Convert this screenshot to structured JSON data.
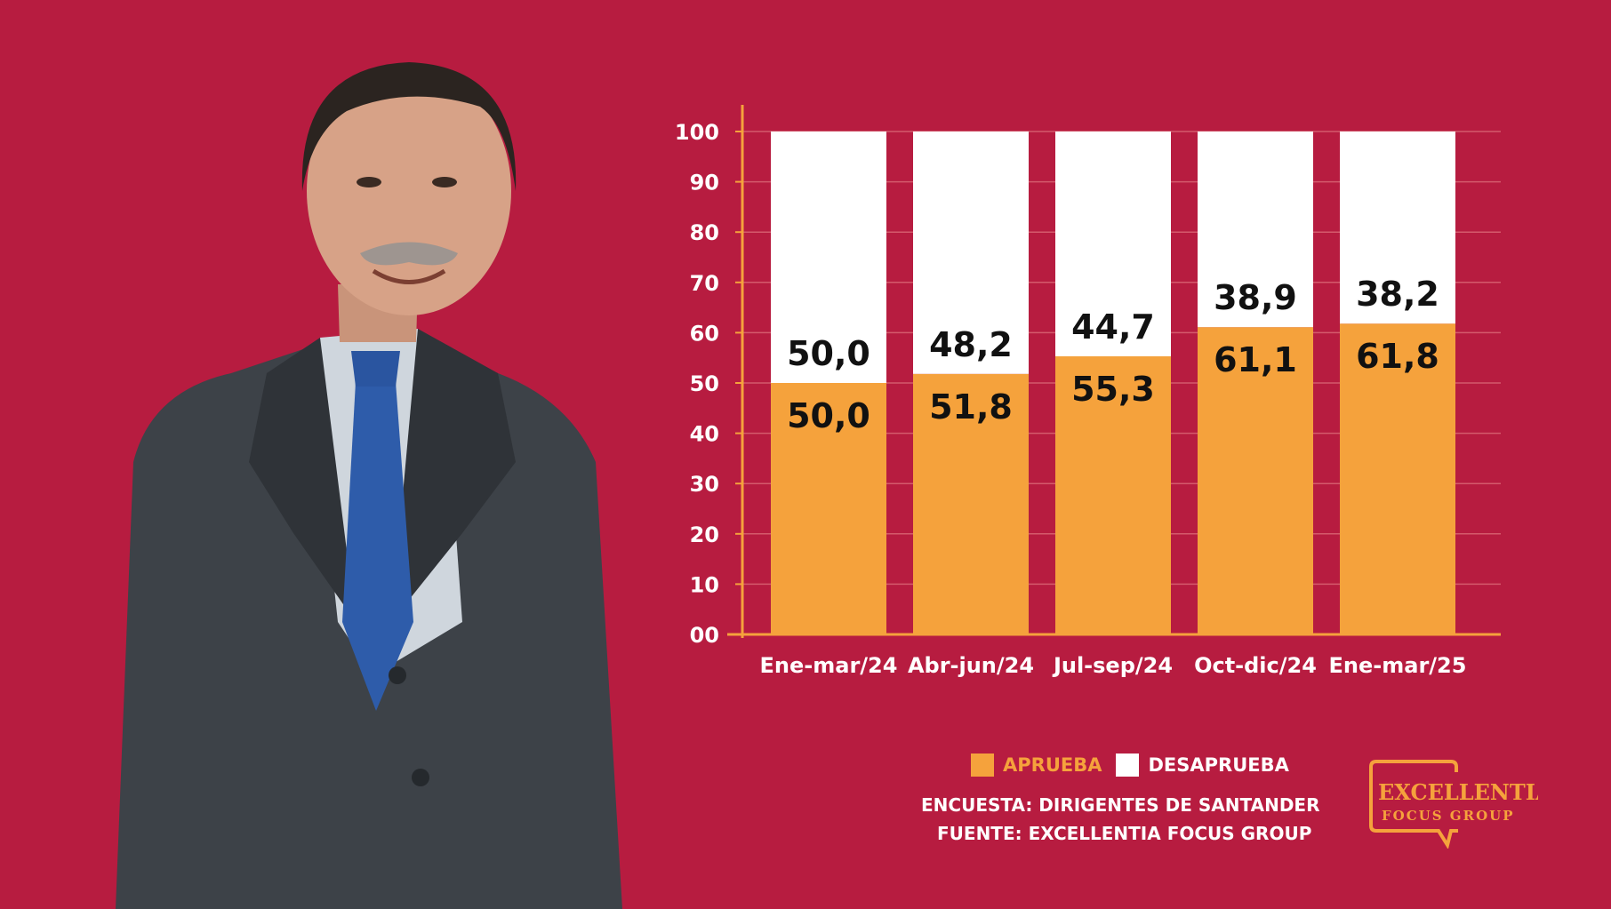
{
  "colors": {
    "background": "#b71c40",
    "aprueba": "#f5a23c",
    "desaprueba": "#ffffff",
    "axis": "#f5a23c",
    "grid": "#d45a6c"
  },
  "chart_data": {
    "type": "bar",
    "stacked": true,
    "categories": [
      "Ene-mar/24",
      "Abr-jun/24",
      "Jul-sep/24",
      "Oct-dic/24",
      "Ene-mar/25"
    ],
    "series": [
      {
        "name": "APRUEBA",
        "values": [
          50.0,
          51.8,
          55.3,
          61.1,
          61.8
        ],
        "labels": [
          "50,0",
          "51,8",
          "55,3",
          "61,1",
          "61,8"
        ]
      },
      {
        "name": "DESAPRUEBA",
        "values": [
          50.0,
          48.2,
          44.7,
          38.9,
          38.2
        ],
        "labels": [
          "50,0",
          "48,2",
          "44,7",
          "38,9",
          "38,2"
        ]
      }
    ],
    "ylim": [
      0,
      100
    ],
    "yticks": [
      "00",
      "10",
      "20",
      "30",
      "40",
      "50",
      "60",
      "70",
      "80",
      "90",
      "100"
    ],
    "grid": true,
    "legend_position": "bottom"
  },
  "legend": {
    "aprueba": "APRUEBA",
    "desaprueba": "DESAPRUEBA"
  },
  "footer": {
    "survey": "ENCUESTA: DIRIGENTES DE SANTANDER",
    "source": "FUENTE: EXCELLENTIA FOCUS GROUP"
  },
  "logo": {
    "line1": "EXCELLENTIA",
    "line2": "FOCUS GROUP"
  }
}
